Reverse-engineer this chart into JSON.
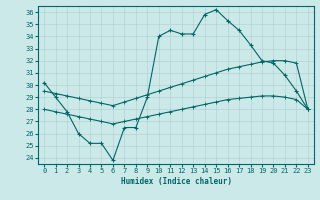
{
  "xlabel": "Humidex (Indice chaleur)",
  "background_color": "#cce9e9",
  "grid_color": "#b0cccc",
  "line_color": "#006666",
  "xlim": [
    -0.5,
    23.5
  ],
  "ylim": [
    23.5,
    36.5
  ],
  "yticks": [
    24,
    25,
    26,
    27,
    28,
    29,
    30,
    31,
    32,
    33,
    34,
    35,
    36
  ],
  "xticks": [
    0,
    1,
    2,
    3,
    4,
    5,
    6,
    7,
    8,
    9,
    10,
    11,
    12,
    13,
    14,
    15,
    16,
    17,
    18,
    19,
    20,
    21,
    22,
    23
  ],
  "line1_x": [
    0,
    1,
    2,
    3,
    4,
    5,
    6,
    7,
    8,
    9,
    10,
    11,
    12,
    13,
    14,
    15,
    16,
    17,
    18,
    19,
    20,
    21,
    22,
    23
  ],
  "line1_y": [
    30.2,
    29.0,
    27.8,
    26.0,
    25.2,
    25.2,
    23.8,
    26.5,
    26.5,
    29.0,
    34.0,
    34.5,
    34.2,
    34.2,
    35.8,
    36.2,
    35.3,
    34.5,
    33.3,
    32.0,
    31.8,
    30.8,
    29.5,
    28.0
  ],
  "line2_x": [
    0,
    1,
    2,
    3,
    4,
    5,
    6,
    7,
    8,
    9,
    10,
    11,
    12,
    13,
    14,
    15,
    16,
    17,
    18,
    19,
    20,
    21,
    22,
    23
  ],
  "line2_y": [
    29.5,
    29.3,
    29.1,
    28.9,
    28.7,
    28.5,
    28.3,
    28.6,
    28.9,
    29.2,
    29.5,
    29.8,
    30.1,
    30.4,
    30.7,
    31.0,
    31.3,
    31.5,
    31.7,
    31.9,
    32.0,
    32.0,
    31.8,
    28.0
  ],
  "line3_x": [
    0,
    1,
    2,
    3,
    4,
    5,
    6,
    7,
    8,
    9,
    10,
    11,
    12,
    13,
    14,
    15,
    16,
    17,
    18,
    19,
    20,
    21,
    22,
    23
  ],
  "line3_y": [
    28.0,
    27.8,
    27.6,
    27.4,
    27.2,
    27.0,
    26.8,
    27.0,
    27.2,
    27.4,
    27.6,
    27.8,
    28.0,
    28.2,
    28.4,
    28.6,
    28.8,
    28.9,
    29.0,
    29.1,
    29.1,
    29.0,
    28.8,
    28.0
  ]
}
